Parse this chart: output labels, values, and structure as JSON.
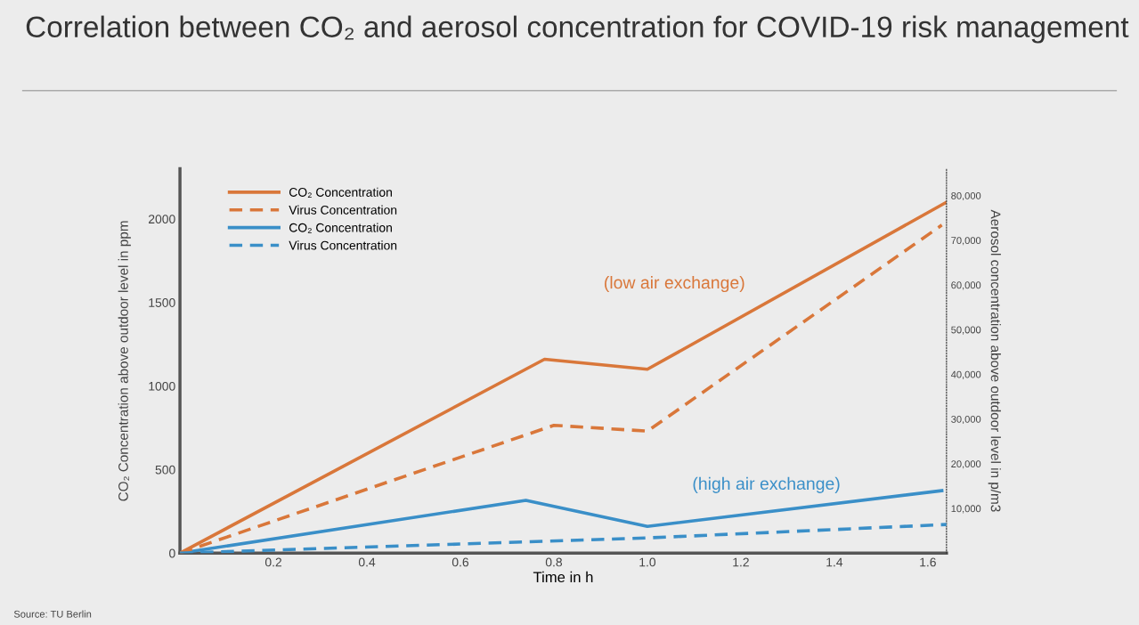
{
  "chart_data": {
    "type": "line",
    "title": "Correlation between CO₂ and aerosol concentration for COVID-19 risk management",
    "xlabel": "Time in h",
    "ylabel": "CO₂ Concentration above outdoor level in ppm",
    "y2label": "Aerosol concentration above outdoor level in p/m3",
    "series": [
      {
        "name": "CO₂ Concentration",
        "color": "#d9773a",
        "line_style": "solid",
        "x": [
          0,
          0.78,
          1.0,
          1.64
        ],
        "values": [
          0,
          1160,
          1100,
          2100
        ]
      },
      {
        "name": "Virus Concentration",
        "color": "#d9773a",
        "line_style": "dashed",
        "axis": "y2",
        "x": [
          0,
          0.8,
          1.0,
          1.63
        ],
        "values": [
          0,
          28600,
          27300,
          73400
        ]
      },
      {
        "name": "CO₂ Concentration",
        "color": "#3a8fc8",
        "line_style": "solid",
        "x": [
          0,
          0.74,
          1.0,
          1.63
        ],
        "values": [
          0,
          316,
          160,
          374
        ]
      },
      {
        "name": "Virus Concentration",
        "color": "#3a8fc8",
        "line_style": "dashed",
        "axis": "y2",
        "x": [
          0,
          1.0,
          1.64
        ],
        "values": [
          0,
          3400,
          6400
        ]
      }
    ],
    "xlim": [
      0,
      1.64
    ],
    "xticks": [
      0.2,
      0.4,
      0.6,
      0.8,
      {
        "value": 1.0,
        "label": "1.0"
      },
      1.2,
      1.4,
      1.6
    ],
    "ylim": [
      0,
      2300
    ],
    "yticks": [
      0,
      500,
      1000,
      1500,
      2000
    ],
    "y2lim": [
      0,
      86000
    ],
    "y2ticks": [
      {
        "value": 10000,
        "label": "10,000"
      },
      {
        "value": 20000,
        "label": "20,000"
      },
      {
        "value": 30000,
        "label": "30,000"
      },
      {
        "value": 40000,
        "label": "40,000"
      },
      {
        "value": 50000,
        "label": "50,000"
      },
      {
        "value": 60000,
        "label": "60,000"
      },
      {
        "value": 70000,
        "label": "70,000"
      },
      {
        "value": 80000,
        "label": "80,000"
      }
    ],
    "annotations": [
      "(low air exchange)",
      "(high air exchange)",
      "Source: TU Berlin"
    ],
    "grid": false,
    "legend": "top left",
    "marker": "none"
  }
}
